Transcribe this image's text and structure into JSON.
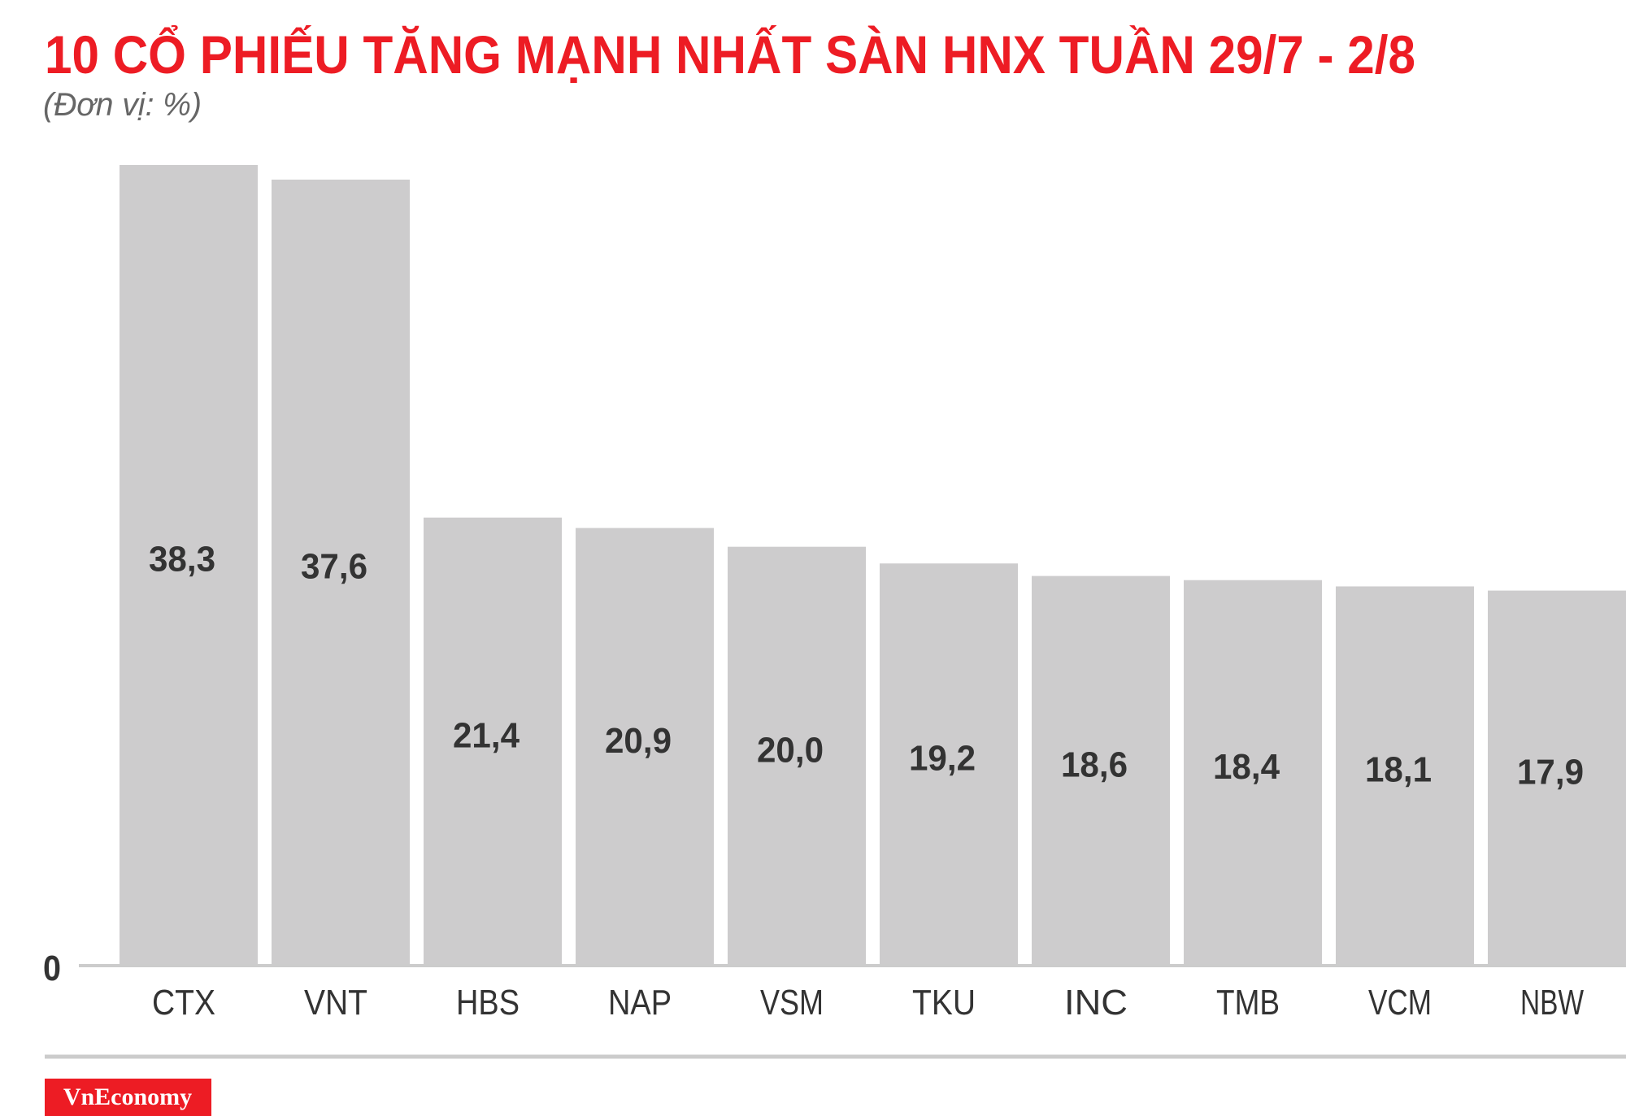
{
  "chart_data": {
    "type": "bar",
    "title": "10 CỔ PHIẾU TĂNG MẠNH NHẤT SÀN HNX TUẦN 29/7 - 2/8",
    "subtitle": "(Đơn vị: %)",
    "categories": [
      "CTX",
      "VNT",
      "HBS",
      "NAP",
      "VSM",
      "TKU",
      "INC",
      "TMB",
      "VCM",
      "NBW"
    ],
    "values": [
      38.3,
      37.6,
      21.4,
      20.9,
      20.0,
      19.2,
      18.6,
      18.4,
      18.1,
      17.9
    ],
    "value_labels": [
      "38,3",
      "37,6",
      "21,4",
      "20,9",
      "20,0",
      "19,2",
      "18,6",
      "18,4",
      "18,1",
      "17,9"
    ],
    "y_tick_labels": [
      "0"
    ],
    "ylim": [
      0,
      38.3
    ],
    "grid": false,
    "legend": "none",
    "colors": {
      "title": "#ed1c24",
      "bar": "#cdcccd",
      "text": "#333333",
      "axis": "#cccccc",
      "logo_bg": "#ed1c24"
    }
  },
  "logo": "VnEconomy"
}
